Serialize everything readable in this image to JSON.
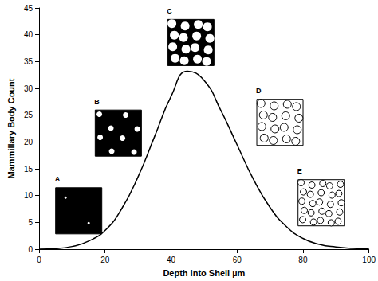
{
  "chart_data": {
    "type": "line",
    "x_label": "Depth Into Shell µm",
    "y_label": "Mammillary Body Count",
    "x": [
      0,
      5,
      10,
      15,
      20,
      25,
      30,
      35,
      40,
      45,
      50,
      55,
      60,
      65,
      70,
      75,
      80,
      85,
      90,
      95,
      100
    ],
    "values": [
      0,
      0.1,
      0.5,
      1.5,
      3.5,
      7.5,
      13.5,
      21,
      28.5,
      33.2,
      31.5,
      26,
      19.5,
      13,
      7.8,
      4.2,
      2,
      0.9,
      0.4,
      0.15,
      0.05
    ],
    "color": "#000000",
    "xlim": [
      0,
      100
    ],
    "xticks": [
      0,
      20,
      40,
      60,
      80,
      100
    ],
    "ylim": [
      0,
      45
    ],
    "yticks": [
      0,
      5,
      10,
      15,
      20,
      25,
      30,
      35,
      40,
      45
    ],
    "grid": false,
    "annotations": [
      {
        "text": "A",
        "x": 5,
        "y": 12.8
      },
      {
        "text": "B",
        "x": 17,
        "y": 27.3
      },
      {
        "text": "C",
        "x": 39,
        "y": 44.2
      },
      {
        "text": "D",
        "x": 66,
        "y": 29.3
      },
      {
        "text": "E",
        "x": 78.5,
        "y": 14.3
      }
    ]
  }
}
